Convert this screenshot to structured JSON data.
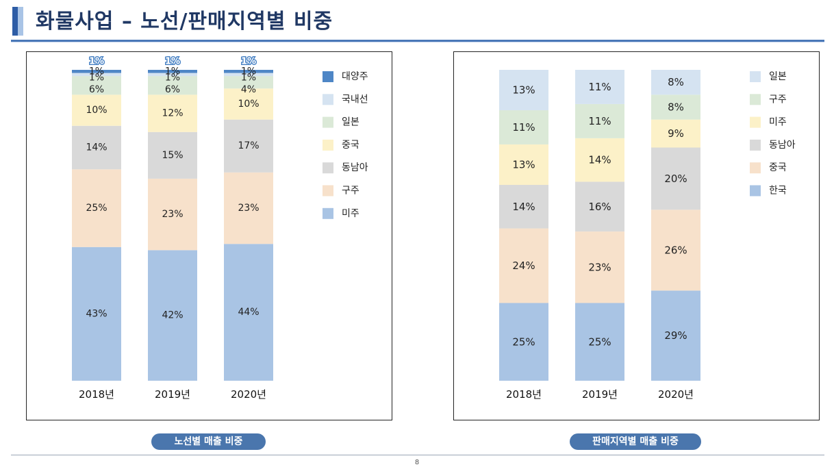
{
  "page": {
    "title": "화물사업 – 노선/판매지역별 비중",
    "page_number": "8"
  },
  "colors": {
    "title_text": "#203864",
    "pill": "#4a76ad",
    "palette": {
      "대양주": "#4e86c6",
      "국내선": "#d5e3f1",
      "일본": "#d5e3f1",
      "구주": "#dbe9d7",
      "미주": "#fcf1c8",
      "동남아": "#d9d9d9",
      "중국": "#f7e1cb",
      "한국": "#a9c4e4"
    }
  },
  "captions": {
    "left": "노선별 매출 비중",
    "right": "판매지역별 매출 비중"
  },
  "chart_data": [
    {
      "type": "bar",
      "stacked": true,
      "name": "route",
      "categories": [
        "2018년",
        "2019년",
        "2020년"
      ],
      "legend_order": [
        "대양주",
        "국내선",
        "일본",
        "중국",
        "동남아",
        "구주",
        "미주"
      ],
      "series": [
        {
          "name": "미주",
          "color": "#a9c4e4",
          "values": [
            43,
            42,
            44
          ],
          "labels": [
            "43%",
            "42%",
            "44%"
          ]
        },
        {
          "name": "구주",
          "color": "#f7e1cb",
          "values": [
            25,
            23,
            23
          ],
          "labels": [
            "25%",
            "23%",
            "23%"
          ]
        },
        {
          "name": "동남아",
          "color": "#d9d9d9",
          "values": [
            14,
            15,
            17
          ],
          "labels": [
            "14%",
            "15%",
            "17%"
          ]
        },
        {
          "name": "중국",
          "color": "#fcf1c8",
          "values": [
            10,
            12,
            10
          ],
          "labels": [
            "10%",
            "12%",
            "10%"
          ]
        },
        {
          "name": "일본",
          "color": "#dbe9d7",
          "values": [
            6,
            6,
            4
          ],
          "labels": [
            "6%",
            "6%",
            "4%"
          ]
        },
        {
          "name": "국내선",
          "color": "#d5e3f1",
          "values": [
            1,
            1,
            1
          ],
          "labels": [
            "1%",
            "1%",
            "1%"
          ]
        },
        {
          "name": "대양주",
          "color": "#4e86c6",
          "values": [
            1,
            1,
            1
          ],
          "labels": [
            "1%",
            "1%",
            "1%"
          ]
        }
      ]
    },
    {
      "type": "bar",
      "stacked": true,
      "name": "sales-region",
      "categories": [
        "2018년",
        "2019년",
        "2020년"
      ],
      "legend_order": [
        "일본",
        "구주",
        "미주",
        "동남아",
        "중국",
        "한국"
      ],
      "series": [
        {
          "name": "한국",
          "color": "#a9c4e4",
          "values": [
            25,
            25,
            29
          ],
          "labels": [
            "25%",
            "25%",
            "29%"
          ]
        },
        {
          "name": "중국",
          "color": "#f7e1cb",
          "values": [
            24,
            23,
            26
          ],
          "labels": [
            "24%",
            "23%",
            "26%"
          ]
        },
        {
          "name": "동남아",
          "color": "#d9d9d9",
          "values": [
            14,
            16,
            20
          ],
          "labels": [
            "14%",
            "16%",
            "20%"
          ]
        },
        {
          "name": "미주",
          "color": "#fcf1c8",
          "values": [
            13,
            14,
            9
          ],
          "labels": [
            "13%",
            "14%",
            "9%"
          ]
        },
        {
          "name": "구주",
          "color": "#dbe9d7",
          "values": [
            11,
            11,
            8
          ],
          "labels": [
            "11%",
            "11%",
            "8%"
          ]
        },
        {
          "name": "일본",
          "color": "#d5e3f1",
          "values": [
            13,
            11,
            8
          ],
          "labels": [
            "13%",
            "11%",
            "8%"
          ]
        }
      ]
    }
  ]
}
